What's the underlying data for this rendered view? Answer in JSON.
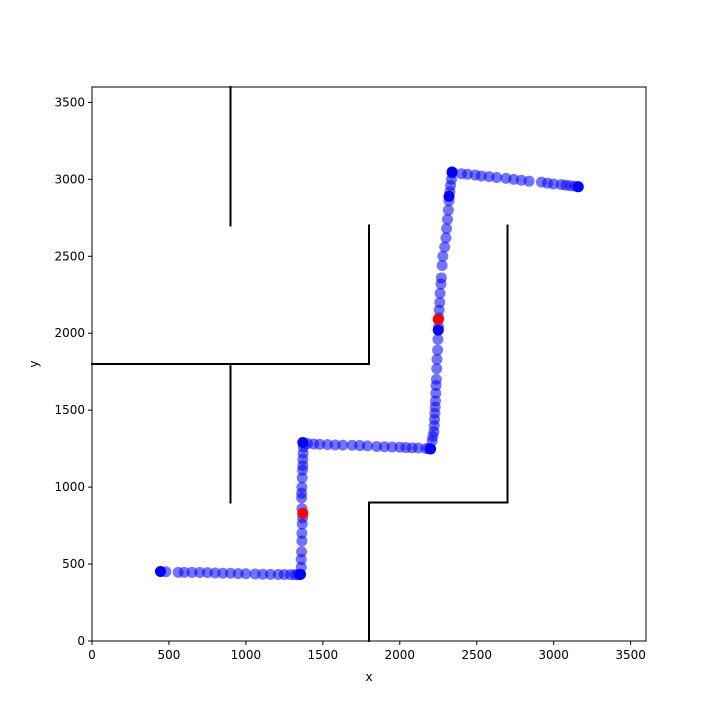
{
  "chart_data": {
    "type": "scatter",
    "title": "",
    "xlabel": "x",
    "ylabel": "y",
    "xlim": [
      0,
      3600
    ],
    "ylim": [
      0,
      3600
    ],
    "xticks": [
      0,
      500,
      1000,
      1500,
      2000,
      2500,
      3000,
      3500
    ],
    "yticks": [
      0,
      500,
      1000,
      1500,
      2000,
      2500,
      3000,
      3500
    ],
    "grid": false,
    "walls": [
      {
        "x": [
          900,
          900
        ],
        "y": [
          2700,
          3600
        ]
      },
      {
        "x": [
          1800,
          1800
        ],
        "y": [
          1800,
          2700
        ]
      },
      {
        "x": [
          0,
          1800
        ],
        "y": [
          1800,
          1800
        ]
      },
      {
        "x": [
          900,
          900
        ],
        "y": [
          900,
          1800
        ]
      },
      {
        "x": [
          1800,
          1800
        ],
        "y": [
          0,
          900
        ]
      },
      {
        "x": [
          1800,
          2700
        ],
        "y": [
          900,
          900
        ]
      },
      {
        "x": [
          2700,
          2700
        ],
        "y": [
          900,
          2700
        ]
      }
    ],
    "series": [
      {
        "color": "#0000ff",
        "opacity": 0.55,
        "points": [
          [
            480,
            450
          ],
          [
            560,
            446
          ],
          [
            600,
            446
          ],
          [
            650,
            446
          ],
          [
            700,
            445
          ],
          [
            750,
            444
          ],
          [
            800,
            442
          ],
          [
            850,
            440
          ],
          [
            900,
            440
          ],
          [
            950,
            438
          ],
          [
            1000,
            437
          ],
          [
            1060,
            435
          ],
          [
            1110,
            434
          ],
          [
            1160,
            433
          ],
          [
            1210,
            432
          ],
          [
            1250,
            432
          ],
          [
            1290,
            431
          ],
          [
            1320,
            431
          ],
          [
            1340,
            431
          ],
          [
            1350,
            432
          ],
          [
            1360,
            480
          ],
          [
            1360,
            530
          ],
          [
            1362,
            580
          ],
          [
            1364,
            650
          ],
          [
            1364,
            700
          ],
          [
            1366,
            760
          ],
          [
            1368,
            800
          ],
          [
            1364,
            860
          ],
          [
            1362,
            930
          ],
          [
            1362,
            960
          ],
          [
            1364,
            1000
          ],
          [
            1366,
            1060
          ],
          [
            1368,
            1110
          ],
          [
            1370,
            1140
          ],
          [
            1370,
            1180
          ],
          [
            1372,
            1220
          ],
          [
            1374,
            1260
          ],
          [
            1400,
            1283
          ],
          [
            1440,
            1280
          ],
          [
            1480,
            1278
          ],
          [
            1530,
            1276
          ],
          [
            1580,
            1274
          ],
          [
            1630,
            1273
          ],
          [
            1690,
            1272
          ],
          [
            1740,
            1270
          ],
          [
            1790,
            1268
          ],
          [
            1850,
            1264
          ],
          [
            1900,
            1262
          ],
          [
            1950,
            1261
          ],
          [
            2000,
            1259
          ],
          [
            2040,
            1257
          ],
          [
            2080,
            1255
          ],
          [
            2120,
            1254
          ],
          [
            2170,
            1250
          ],
          [
            2190,
            1250
          ],
          [
            2210,
            1300
          ],
          [
            2215,
            1330
          ],
          [
            2222,
            1360
          ],
          [
            2224,
            1400
          ],
          [
            2226,
            1440
          ],
          [
            2228,
            1480
          ],
          [
            2230,
            1520
          ],
          [
            2232,
            1560
          ],
          [
            2234,
            1610
          ],
          [
            2236,
            1660
          ],
          [
            2238,
            1700
          ],
          [
            2240,
            1770
          ],
          [
            2242,
            1830
          ],
          [
            2246,
            1890
          ],
          [
            2248,
            1960
          ],
          [
            2252,
            2040
          ],
          [
            2254,
            2100
          ],
          [
            2256,
            2150
          ],
          [
            2260,
            2200
          ],
          [
            2262,
            2260
          ],
          [
            2268,
            2320
          ],
          [
            2270,
            2360
          ],
          [
            2275,
            2440
          ],
          [
            2280,
            2500
          ],
          [
            2292,
            2560
          ],
          [
            2300,
            2620
          ],
          [
            2304,
            2680
          ],
          [
            2310,
            2740
          ],
          [
            2316,
            2800
          ],
          [
            2320,
            2860
          ],
          [
            2326,
            2920
          ],
          [
            2330,
            2960
          ],
          [
            2336,
            3000
          ],
          [
            2340,
            3040
          ],
          [
            2400,
            3036
          ],
          [
            2440,
            3033
          ],
          [
            2490,
            3028
          ],
          [
            2530,
            3022
          ],
          [
            2580,
            3018
          ],
          [
            2630,
            3012
          ],
          [
            2690,
            3006
          ],
          [
            2740,
            3000
          ],
          [
            2790,
            2994
          ],
          [
            2840,
            2988
          ],
          [
            2920,
            2982
          ],
          [
            2960,
            2975
          ],
          [
            3000,
            2970
          ],
          [
            3050,
            2966
          ],
          [
            3080,
            2962
          ],
          [
            3110,
            2958
          ],
          [
            3140,
            2955
          ]
        ]
      },
      {
        "color": "#0000ff",
        "opacity": 1,
        "points": [
          [
            445,
            452
          ],
          [
            1355,
            433
          ],
          [
            1370,
            1290
          ],
          [
            2200,
            1248
          ],
          [
            2250,
            2020
          ],
          [
            2320,
            2890
          ],
          [
            2340,
            3048
          ],
          [
            3160,
            2952
          ]
        ]
      },
      {
        "color": "#ff0000",
        "opacity": 1,
        "points": [
          [
            1370,
            830
          ],
          [
            2250,
            2090
          ]
        ]
      }
    ]
  }
}
